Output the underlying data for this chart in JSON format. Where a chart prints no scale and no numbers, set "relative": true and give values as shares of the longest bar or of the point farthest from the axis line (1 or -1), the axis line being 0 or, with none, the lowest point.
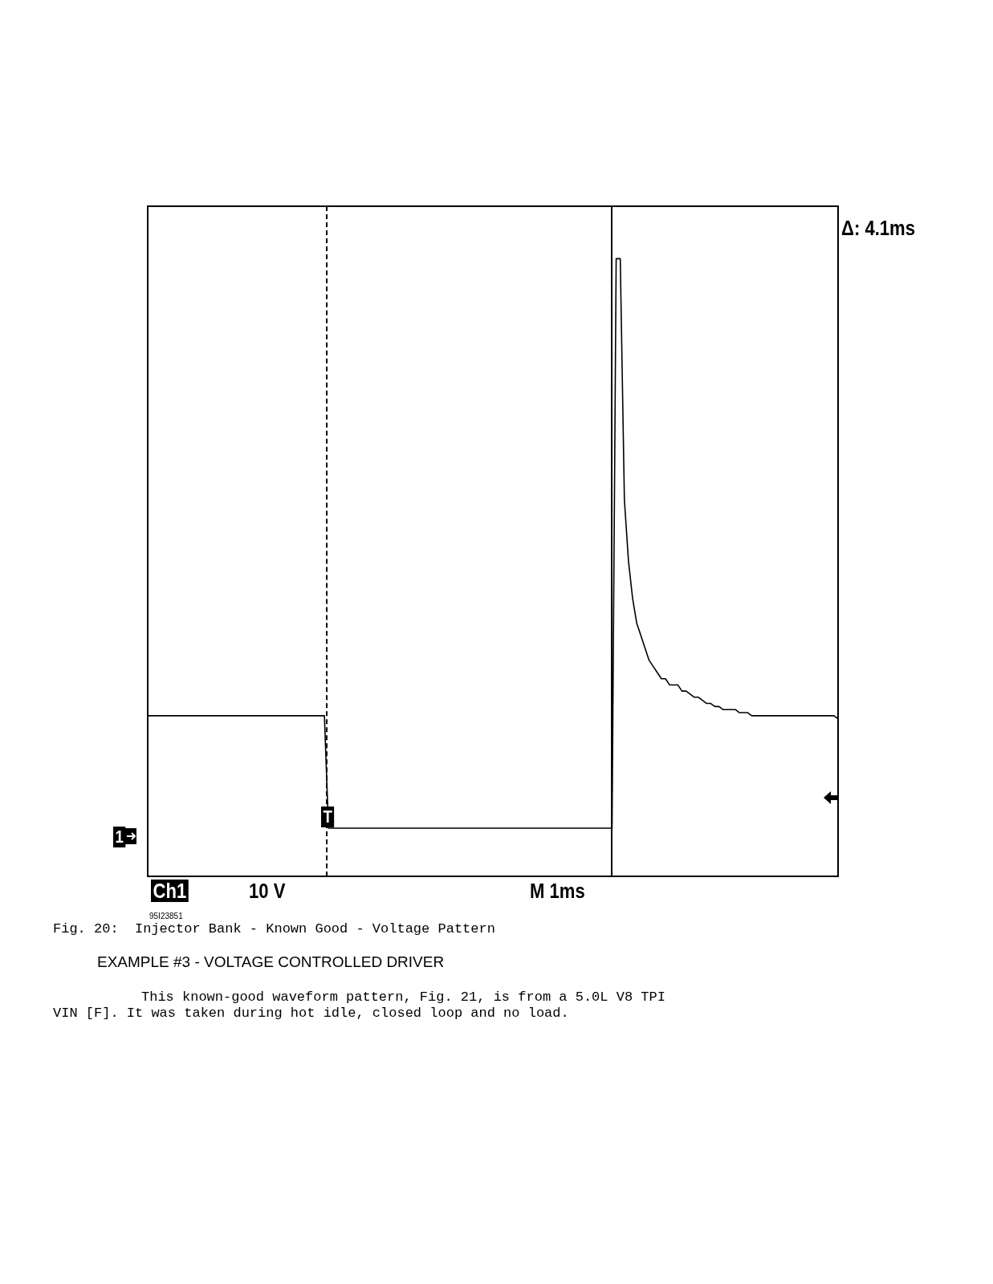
{
  "chart_data": {
    "type": "line",
    "relative": true,
    "legend": false,
    "marker": "none",
    "line_style": "solid",
    "categories": [
      null,
      null,
      null,
      null,
      null,
      null,
      null,
      null,
      null,
      null,
      null,
      null,
      null,
      null,
      null,
      null,
      null,
      null,
      null,
      null,
      null,
      null,
      null,
      null,
      null,
      null,
      null,
      null,
      null,
      null,
      null,
      null,
      null,
      null,
      null,
      null,
      null,
      null,
      null,
      null,
      null,
      null,
      null,
      null,
      null,
      null,
      null,
      null,
      null,
      null,
      null,
      null,
      null,
      null,
      null,
      null,
      null,
      null,
      null,
      null,
      null,
      null,
      null,
      null,
      null,
      null,
      null,
      null,
      null,
      null,
      null,
      null,
      null,
      null,
      null,
      null,
      null,
      null,
      null,
      null,
      null,
      null,
      null,
      null,
      null,
      null,
      null,
      null,
      null,
      null,
      null,
      null,
      null,
      null,
      null,
      null,
      null,
      null,
      null,
      null,
      null,
      null,
      null,
      null,
      null,
      null,
      null,
      null,
      null,
      null,
      null,
      null,
      null,
      null,
      null,
      null,
      null,
      null,
      null,
      null,
      null,
      null,
      null,
      null,
      null,
      null,
      null,
      null,
      null,
      null,
      null,
      null,
      null,
      null,
      null,
      null,
      null,
      null,
      null,
      null,
      null,
      null,
      null,
      null,
      null,
      null,
      null,
      null,
      null,
      null,
      null,
      null,
      null,
      null,
      null,
      null,
      null,
      null,
      null,
      null,
      null,
      null,
      null,
      null,
      null,
      null,
      null,
      null,
      null
    ],
    "series": [
      {
        "color": "#000000",
        "values": [
          0.26,
          0.26,
          0.26,
          0.26,
          0.26,
          0.26,
          0.26,
          0.26,
          0.26,
          0.26,
          0.26,
          0.26,
          0.26,
          0.26,
          0.26,
          0.26,
          0.26,
          0.26,
          0.26,
          0.26,
          0.26,
          0.26,
          0.26,
          0.26,
          0.26,
          0.26,
          0.26,
          0.26,
          0.26,
          0.26,
          0.26,
          0.26,
          0.26,
          0.26,
          0.26,
          0.26,
          0.26,
          0.26,
          0.26,
          0.26,
          0.26,
          0.26,
          0.26,
          0.26,
          0.078,
          0.078,
          0.078,
          0.078,
          0.078,
          0.078,
          0.078,
          0.078,
          0.078,
          0.078,
          0.078,
          0.078,
          0.078,
          0.078,
          0.078,
          0.078,
          0.078,
          0.078,
          0.078,
          0.078,
          0.078,
          0.078,
          0.078,
          0.078,
          0.078,
          0.078,
          0.078,
          0.078,
          0.078,
          0.078,
          0.078,
          0.078,
          0.078,
          0.078,
          0.078,
          0.078,
          0.078,
          0.078,
          0.078,
          0.078,
          0.078,
          0.078,
          0.078,
          0.078,
          0.078,
          0.078,
          0.078,
          0.078,
          0.078,
          0.078,
          0.078,
          0.078,
          0.078,
          0.078,
          0.078,
          0.078,
          0.078,
          0.078,
          0.078,
          0.078,
          0.078,
          0.078,
          0.078,
          0.078,
          0.078,
          0.078,
          0.078,
          0.078,
          0.078,
          0.078,
          1.0,
          1.0,
          0.61,
          0.51,
          0.45,
          0.41,
          0.39,
          0.37,
          0.35,
          0.34,
          0.33,
          0.32,
          0.32,
          0.31,
          0.31,
          0.31,
          0.3,
          0.3,
          0.295,
          0.29,
          0.29,
          0.285,
          0.28,
          0.28,
          0.275,
          0.275,
          0.27,
          0.27,
          0.27,
          0.27,
          0.265,
          0.265,
          0.265,
          0.26,
          0.26,
          0.26,
          0.26,
          0.26,
          0.26,
          0.26,
          0.26,
          0.26,
          0.26,
          0.26,
          0.26,
          0.26,
          0.26,
          0.26,
          0.26,
          0.26,
          0.26,
          0.26,
          0.26,
          0.26,
          0.255
        ]
      }
    ],
    "annotations": [
      "Δ: 4.1ms",
      "Ch1",
      "10 V",
      "M 1ms",
      "1",
      "T",
      "95I23851",
      "Fig. 20:  Injector Bank - Known Good - Voltage Pattern",
      "EXAMPLE #3 - VOLTAGE CONTROLLED DRIVER",
      "This known-good waveform pattern, Fig. 21, is from a 5.0L V8 TPI VIN [F]. It was taken during hot idle, closed loop and no load."
    ]
  }
}
